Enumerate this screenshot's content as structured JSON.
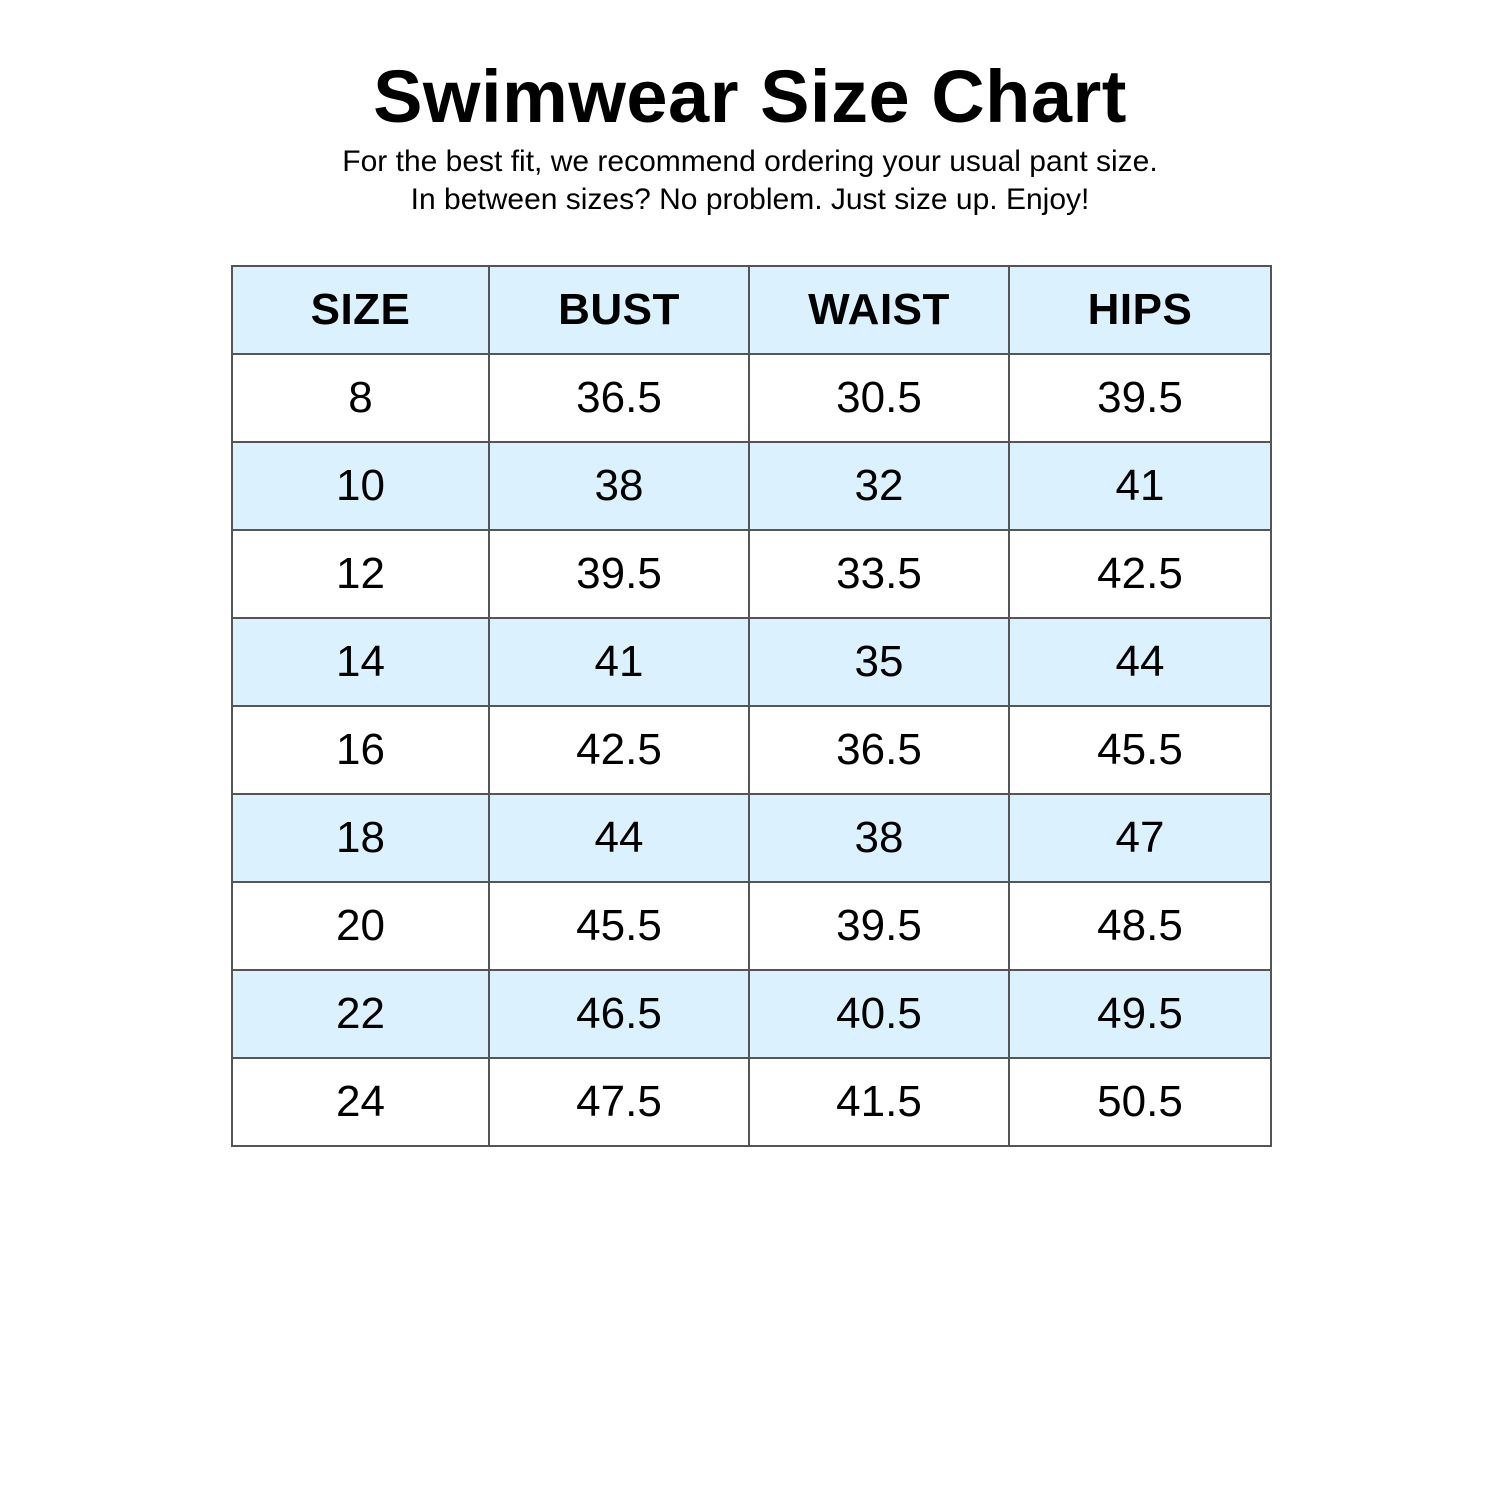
{
  "title": "Swimwear Size Chart",
  "subtitle": {
    "line1": "For the best fit, we recommend ordering your usual pant size.",
    "line2": "In between sizes? No problem. Just size up. Enjoy!"
  },
  "colors": {
    "header_bg": "#dbf1fd",
    "alt_row_bg": "#dbf1fd",
    "border": "#555555"
  },
  "table": {
    "headers": [
      "SIZE",
      "BUST",
      "WAIST",
      "HIPS"
    ],
    "rows": [
      [
        "8",
        "36.5",
        "30.5",
        "39.5"
      ],
      [
        "10",
        "38",
        "32",
        "41"
      ],
      [
        "12",
        "39.5",
        "33.5",
        "42.5"
      ],
      [
        "14",
        "41",
        "35",
        "44"
      ],
      [
        "16",
        "42.5",
        "36.5",
        "45.5"
      ],
      [
        "18",
        "44",
        "38",
        "47"
      ],
      [
        "20",
        "45.5",
        "39.5",
        "48.5"
      ],
      [
        "22",
        "46.5",
        "40.5",
        "49.5"
      ],
      [
        "24",
        "47.5",
        "41.5",
        "50.5"
      ]
    ]
  }
}
